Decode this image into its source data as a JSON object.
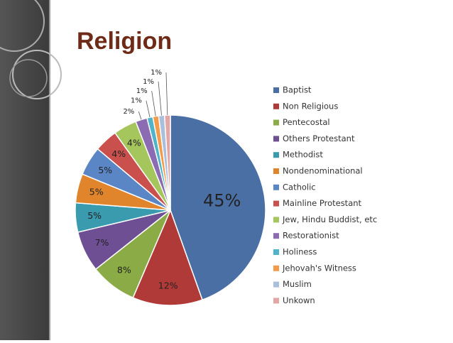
{
  "chart_data": {
    "type": "pie",
    "title": "Religion",
    "categories": [
      "Baptist",
      "Non Religious",
      "Pentecostal",
      "Others Protestant",
      "Methodist",
      "Nondenominational",
      "Catholic",
      "Mainline Protestant",
      "Jew, Hindu Buddist, etc",
      "Restorationist",
      "Holiness",
      "Jehovah's Witness",
      "Muslim",
      "Unkown"
    ],
    "values": [
      45,
      12,
      8,
      7,
      5,
      5,
      5,
      4,
      4,
      2,
      1,
      1,
      1,
      1
    ],
    "value_labels": [
      "45%",
      "12%",
      "8%",
      "7%",
      "5%",
      "5%",
      "5%",
      "4%",
      "4%",
      "2%",
      "1%",
      "1%",
      "1%",
      "1%"
    ],
    "colors": [
      "#4a6fa5",
      "#b03a37",
      "#8aab45",
      "#6e4f93",
      "#3a9aae",
      "#e0852c",
      "#5b86c6",
      "#c9504c",
      "#a5c55d",
      "#8b6bb1",
      "#4fb3c9",
      "#f39b4a",
      "#a9bfdc",
      "#e2a6a5"
    ],
    "legend": "right"
  }
}
